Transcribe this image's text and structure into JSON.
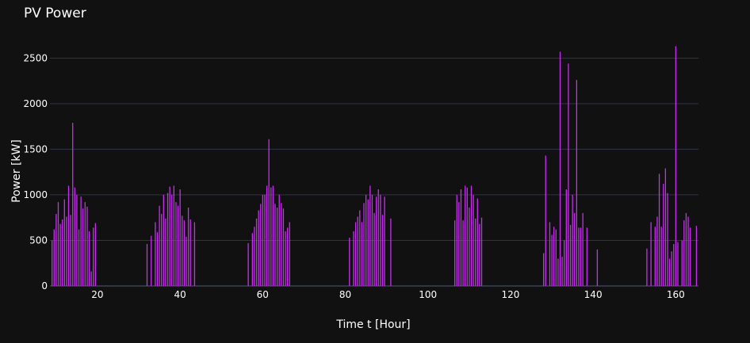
{
  "chart_data": {
    "type": "bar",
    "title": "PV Power",
    "xlabel": "Time t [Hour]",
    "ylabel": "Power [kW]",
    "xlim": [
      8.5,
      165.5
    ],
    "ylim": [
      0,
      2720
    ],
    "xticks": [
      20,
      40,
      60,
      80,
      100,
      120,
      140,
      160
    ],
    "yticks": [
      0,
      500,
      1000,
      1500,
      2000,
      2500
    ],
    "grid": true,
    "legend": "none",
    "series": [
      {
        "x": [
          9.0,
          9.5,
          10.0,
          10.5,
          11.0,
          11.5,
          12.0,
          12.5,
          13.0,
          13.5,
          14.0,
          14.5,
          15.0,
          15.5,
          16.0,
          16.5,
          17.0,
          17.5,
          18.0,
          18.5,
          19.0,
          19.5,
          20.0,
          32.0,
          32.5,
          33.0,
          33.5,
          34.0,
          34.5,
          35.0,
          35.5,
          36.0,
          36.5,
          37.0,
          37.5,
          38.0,
          38.5,
          39.0,
          39.5,
          40.0,
          40.5,
          41.0,
          41.5,
          42.0,
          42.5,
          43.0,
          43.5,
          44.0,
          56.5,
          57.0,
          57.5,
          58.0,
          58.5,
          59.0,
          59.5,
          60.0,
          60.5,
          61.0,
          61.5,
          62.0,
          62.5,
          63.0,
          63.5,
          64.0,
          64.5,
          65.0,
          65.5,
          66.0,
          66.5,
          67.0,
          67.5,
          81.0,
          81.5,
          82.0,
          82.5,
          83.0,
          83.5,
          84.0,
          84.5,
          85.0,
          85.5,
          86.0,
          86.5,
          87.0,
          87.5,
          88.0,
          88.5,
          89.0,
          89.5,
          90.0,
          91.0,
          93.0,
          106.5,
          107.0,
          107.5,
          108.0,
          108.5,
          109.0,
          109.5,
          110.0,
          110.5,
          111.0,
          111.5,
          112.0,
          112.5,
          113.0,
          113.5,
          114.0,
          114.5,
          128.0,
          128.5,
          129.0,
          129.5,
          130.0,
          130.5,
          131.0,
          131.5,
          132.0,
          132.5,
          133.0,
          133.5,
          134.0,
          134.5,
          135.0,
          135.5,
          136.0,
          136.5,
          137.0,
          137.5,
          138.0,
          138.5,
          141.0,
          153.0,
          153.5,
          154.0,
          154.5,
          155.0,
          155.5,
          156.0,
          156.5,
          157.0,
          157.5,
          158.0,
          158.5,
          159.0,
          159.5,
          160.0,
          160.5,
          161.0,
          161.5,
          162.0,
          162.5,
          163.0,
          163.5,
          164.0,
          165.0
        ],
        "values": [
          500,
          620,
          790,
          920,
          680,
          730,
          950,
          760,
          1100,
          780,
          1790,
          1080,
          1000,
          620,
          980,
          850,
          920,
          870,
          600,
          160,
          640,
          690,
          0,
          460,
          0,
          550,
          0,
          700,
          590,
          880,
          790,
          1000,
          740,
          1020,
          1090,
          1000,
          1100,
          920,
          880,
          1060,
          770,
          720,
          540,
          860,
          730,
          0,
          700,
          0,
          470,
          0,
          580,
          650,
          740,
          830,
          900,
          1000,
          1000,
          1100,
          1610,
          1080,
          1100,
          900,
          860,
          1000,
          910,
          850,
          600,
          640,
          700,
          0,
          0,
          530,
          0,
          600,
          700,
          760,
          830,
          700,
          910,
          1000,
          950,
          1100,
          1000,
          800,
          980,
          1060,
          1000,
          780,
          980,
          0,
          740,
          0,
          720,
          1000,
          920,
          1060,
          720,
          1100,
          1080,
          860,
          1100,
          1000,
          740,
          960,
          680,
          750,
          0,
          0,
          0,
          360,
          1430,
          0,
          700,
          560,
          650,
          620,
          300,
          2570,
          320,
          500,
          1060,
          2440,
          670,
          1000,
          800,
          2260,
          640,
          640,
          800,
          0,
          640,
          400,
          410,
          0,
          700,
          0,
          650,
          760,
          1230,
          650,
          1120,
          1290,
          1020,
          300,
          380,
          460,
          2630,
          480,
          0,
          500,
          720,
          800,
          760,
          640,
          0,
          660
        ],
        "color": "#c72ef0"
      }
    ]
  }
}
